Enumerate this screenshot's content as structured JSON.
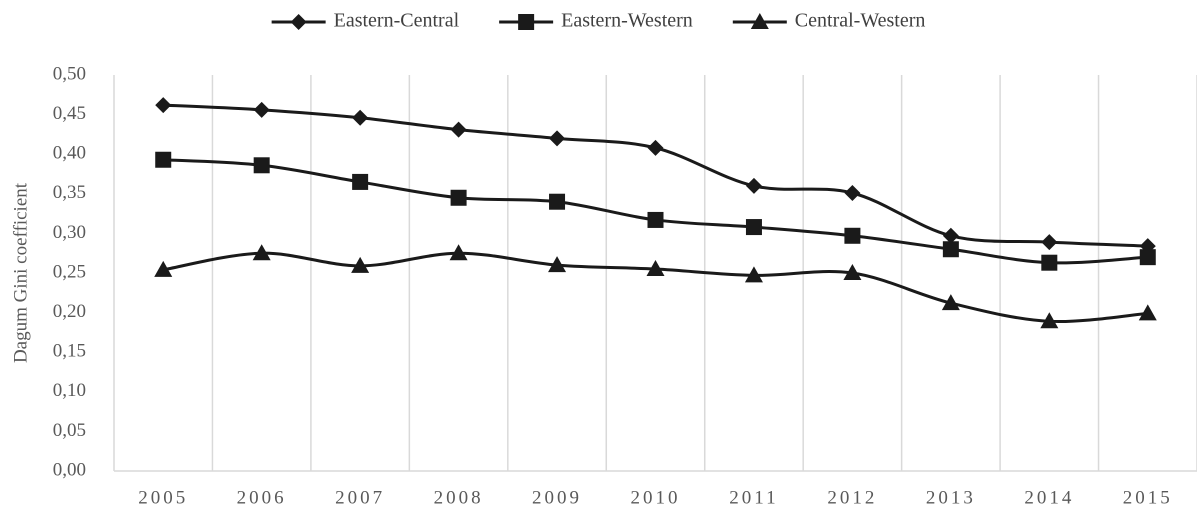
{
  "chart_data": {
    "type": "line",
    "y_label": "Dagum Gini coefficient",
    "categories": [
      "2005",
      "2006",
      "2007",
      "2008",
      "2009",
      "2010",
      "2011",
      "2012",
      "2013",
      "2014",
      "2015"
    ],
    "series": [
      {
        "name": "Eastern-Central",
        "color": "#1a1a1a",
        "marker": "diamond",
        "values": [
          0.462,
          0.456,
          0.446,
          0.431,
          0.42,
          0.408,
          0.36,
          0.351,
          0.297,
          0.289,
          0.284
        ]
      },
      {
        "name": "Eastern-Western",
        "color": "#1a1a1a",
        "marker": "square",
        "values": [
          0.393,
          0.386,
          0.365,
          0.345,
          0.34,
          0.317,
          0.308,
          0.297,
          0.28,
          0.263,
          0.27
        ]
      },
      {
        "name": "Central-Western",
        "color": "#1a1a1a",
        "marker": "triangle",
        "values": [
          0.254,
          0.275,
          0.259,
          0.275,
          0.26,
          0.255,
          0.247,
          0.25,
          0.212,
          0.189,
          0.199
        ]
      }
    ],
    "ylim": [
      0,
      0.5
    ],
    "yticks": [
      {
        "value": 0,
        "label": "0,00"
      },
      {
        "value": 0.05,
        "label": "0,05"
      },
      {
        "value": 0.1,
        "label": "0,10"
      },
      {
        "value": 0.15,
        "label": "0,15"
      },
      {
        "value": 0.2,
        "label": "0,20"
      },
      {
        "value": 0.25,
        "label": "0,25"
      },
      {
        "value": 0.3,
        "label": "0,30"
      },
      {
        "value": 0.35,
        "label": "0,35"
      },
      {
        "value": 0.4,
        "label": "0,40"
      },
      {
        "value": 0.45,
        "label": "0,45"
      },
      {
        "value": 0.5,
        "label": "0,50"
      }
    ],
    "grid": "x",
    "smooth": true,
    "legend": "top"
  }
}
